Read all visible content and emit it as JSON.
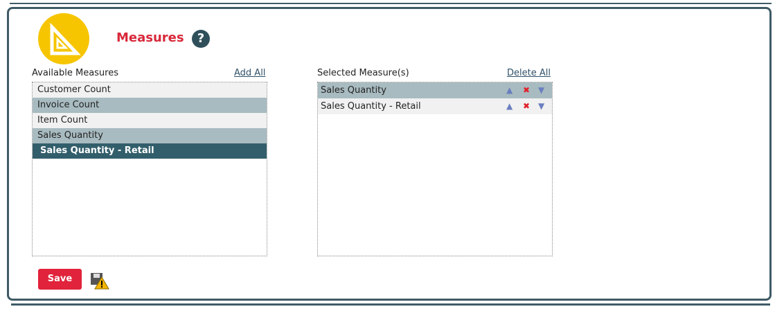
{
  "header": {
    "title": "Measures",
    "help": "?"
  },
  "available": {
    "label": "Available Measures",
    "action": "Add All",
    "items": [
      "Customer Count",
      "Invoice Count",
      "Item Count",
      "Sales Quantity",
      "Sales Quantity - Retail"
    ]
  },
  "selected": {
    "label": "Selected Measure(s)",
    "action": "Delete All",
    "items": [
      "Sales Quantity",
      "Sales Quantity - Retail"
    ]
  },
  "footer": {
    "save": "Save"
  }
}
